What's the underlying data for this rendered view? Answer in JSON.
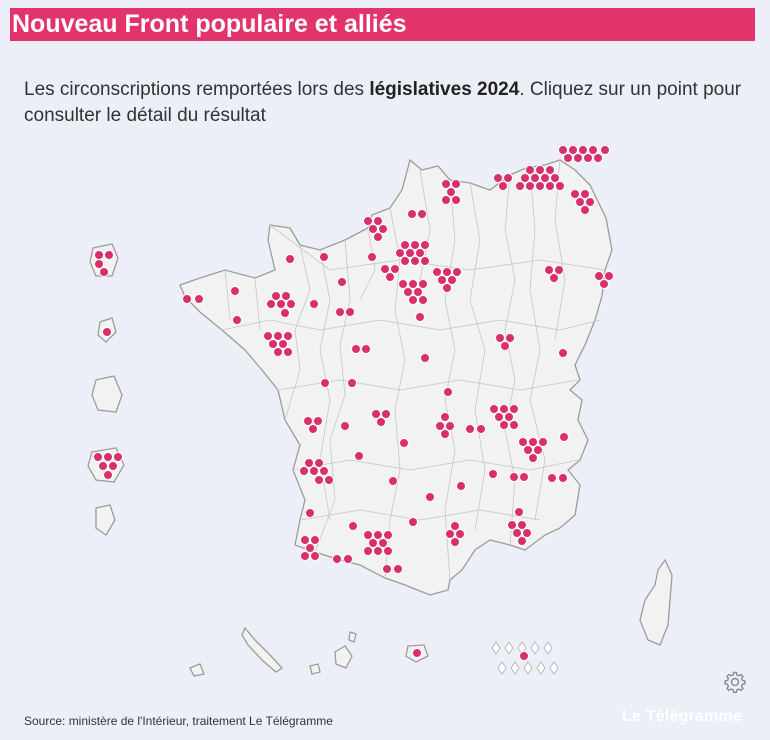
{
  "title": "Nouveau Front populaire et alliés",
  "intro": {
    "before": "Les circonscriptions remportées lors des ",
    "bold": "législatives 2024",
    "after": ". Cliquez sur un point pour consulter le détail du résultat"
  },
  "source": "Source: ministère de l'Intérieur, traitement Le Télégramme",
  "brand": "Le Télégramme",
  "colors": {
    "accent": "#e2336b",
    "dot": "#d9306b",
    "land": "#f2f2f2"
  },
  "icons": {
    "settings": "gear-icon"
  }
}
